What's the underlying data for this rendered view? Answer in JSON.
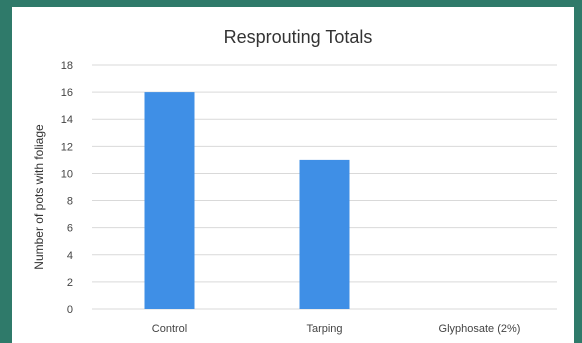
{
  "colors": {
    "slide_background": "#2f7a6a",
    "bar": "#3f8fe6",
    "grid": "#d9d9d9"
  },
  "chart_data": {
    "type": "bar",
    "title": "Resprouting Totals",
    "xlabel": "",
    "ylabel": "Number of pots with foliage",
    "categories": [
      "Control",
      "Tarping",
      "Glyphosate (2%)"
    ],
    "values": [
      16,
      11,
      0
    ],
    "ylim": [
      0,
      18
    ],
    "yticks": [
      0,
      2,
      4,
      6,
      8,
      10,
      12,
      14,
      16,
      18
    ],
    "grid": true,
    "legend": "none"
  }
}
